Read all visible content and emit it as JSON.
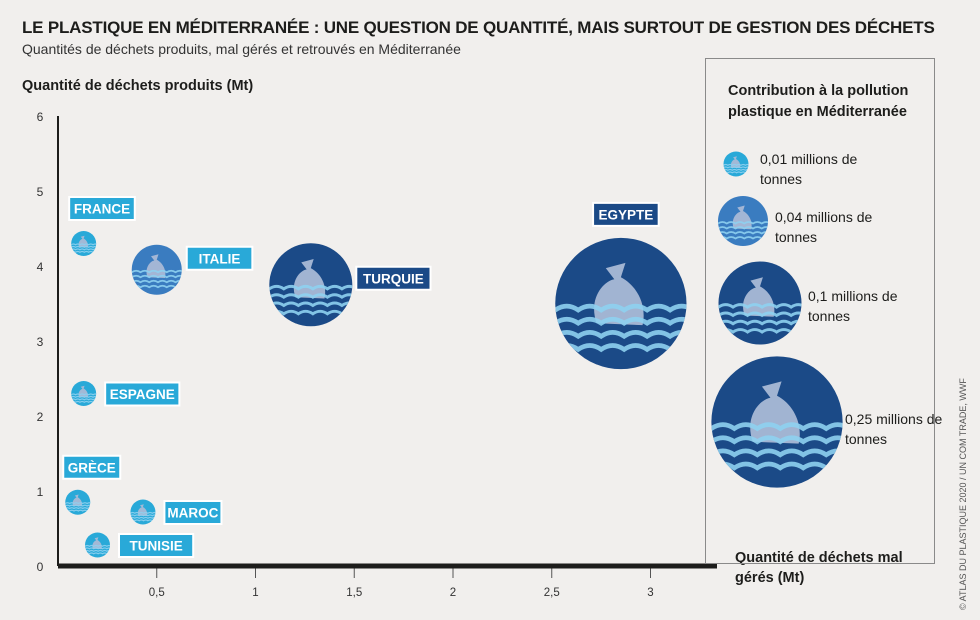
{
  "header": {
    "title": "LE PLASTIQUE EN MÉDITERRANÉE : UNE QUESTION DE QUANTITÉ, MAIS SURTOUT DE GESTION DES DÉCHETS",
    "subtitle": "Quantités de déchets produits, mal gérés et retrouvés en Méditerranée"
  },
  "legend": {
    "title": "Contribution à la pollution plastique en Méditerranée",
    "items": [
      {
        "label": "0,01 millions de tonnes",
        "value": 0.01
      },
      {
        "label": "0,04 millions de tonnes",
        "value": 0.04
      },
      {
        "label": "0,1 millions de tonnes",
        "value": 0.1
      },
      {
        "label": "0,25 millions de tonnes",
        "value": 0.25
      }
    ]
  },
  "credit": "© ATLAS DU PLASTIQUE 2020 / UN COM TRADE, WWF",
  "colors": {
    "dark_navy": "#1b4a87",
    "mid_blue": "#3a7cc0",
    "cyan": "#29a9d8",
    "wave_light": "#8ed0ef",
    "bag": "#a9b9d6"
  },
  "chart_data": {
    "type": "scatter",
    "title": "",
    "xlabel": "Quantité de déchets mal gérés (Mt)",
    "ylabel": "Quantité de déchets produits (Mt)",
    "xlim": [
      0,
      3.3
    ],
    "ylim": [
      0,
      6
    ],
    "x_ticks": [
      "0,5",
      "1",
      "1,5",
      "2",
      "2,5",
      "3"
    ],
    "x_tick_values": [
      0.5,
      1,
      1.5,
      2,
      2.5,
      3
    ],
    "y_ticks": [
      "0",
      "1",
      "2",
      "3",
      "4",
      "5",
      "6"
    ],
    "y_tick_values": [
      0,
      1,
      2,
      3,
      4,
      5,
      6
    ],
    "points": [
      {
        "label": "FRANCE",
        "x": 0.13,
        "y": 4.3,
        "size": 0.01,
        "label_pos": "above"
      },
      {
        "label": "ITALIE",
        "x": 0.5,
        "y": 3.95,
        "size": 0.04,
        "label_pos": "right"
      },
      {
        "label": "TURQUIE",
        "x": 1.28,
        "y": 3.75,
        "size": 0.1,
        "label_pos": "right"
      },
      {
        "label": "EGYPTE",
        "x": 2.85,
        "y": 3.5,
        "size": 0.25,
        "label_pos": "above"
      },
      {
        "label": "ESPAGNE",
        "x": 0.13,
        "y": 2.3,
        "size": 0.01,
        "label_pos": "right"
      },
      {
        "label": "GRÈCE",
        "x": 0.1,
        "y": 0.85,
        "size": 0.01,
        "label_pos": "above"
      },
      {
        "label": "MAROC",
        "x": 0.43,
        "y": 0.72,
        "size": 0.01,
        "label_pos": "right"
      },
      {
        "label": "TUNISIE",
        "x": 0.2,
        "y": 0.28,
        "size": 0.01,
        "label_pos": "right"
      }
    ]
  }
}
